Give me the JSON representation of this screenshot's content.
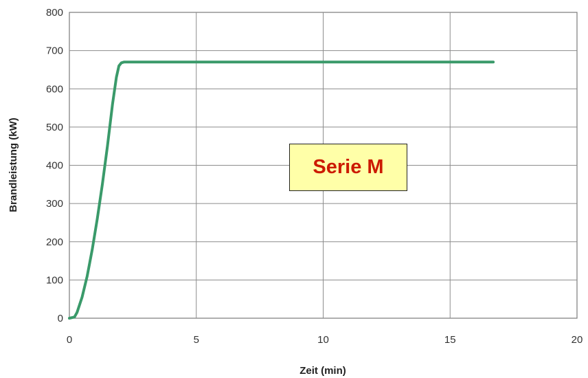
{
  "chart_data": {
    "type": "line",
    "title": "",
    "xlabel": "Zeit (min)",
    "ylabel": "Brandleistung (kW)",
    "xlim": [
      0,
      20
    ],
    "ylim": [
      0,
      800
    ],
    "xticks": [
      0,
      5,
      10,
      15,
      20
    ],
    "yticks": [
      0,
      100,
      200,
      300,
      400,
      500,
      600,
      700,
      800
    ],
    "grid": true,
    "legend": "none",
    "annotation": "Serie M",
    "colors": {
      "series": "#3a9a6a",
      "annotation_text": "#cc1a00",
      "annotation_fill": "#ffffa8"
    },
    "series": [
      {
        "x": [
          0,
          0.2,
          0.3,
          0.5,
          0.7,
          0.9,
          1.1,
          1.3,
          1.5,
          1.7,
          1.85,
          1.95,
          2.05,
          2.15,
          2.3,
          2.5,
          16.7
        ],
        "y": [
          0,
          3,
          15,
          55,
          110,
          180,
          260,
          350,
          450,
          560,
          630,
          660,
          668,
          670,
          670,
          670,
          670
        ]
      }
    ]
  }
}
